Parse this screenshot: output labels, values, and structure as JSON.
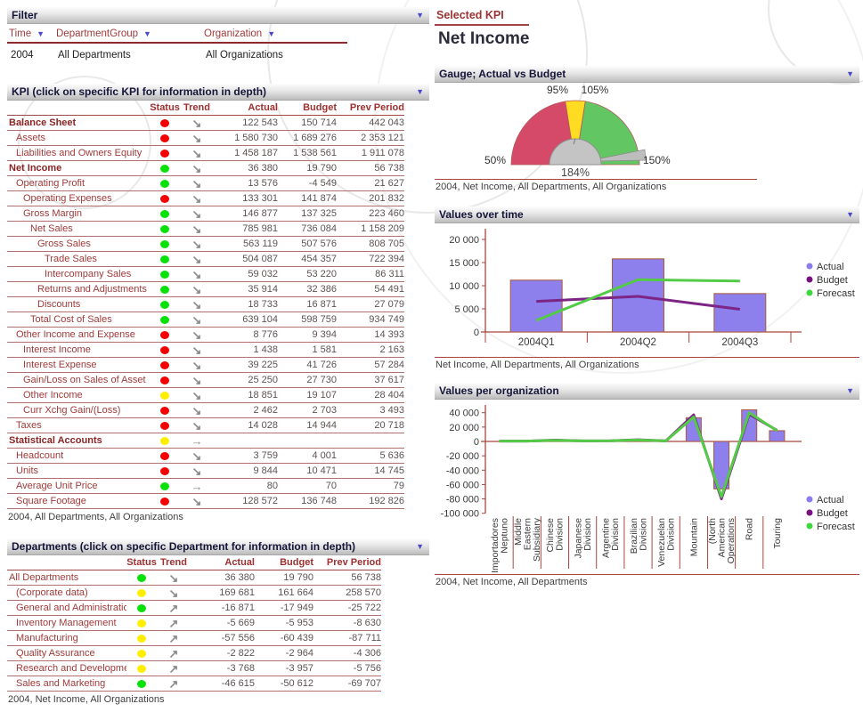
{
  "filter": {
    "title": "Filter",
    "columns": [
      {
        "label": "Time",
        "value": "2004"
      },
      {
        "label": "DepartmentGroup",
        "value": "All Departments"
      },
      {
        "label": "Organization",
        "value": "All Organizations"
      }
    ]
  },
  "selected_kpi": {
    "label": "Selected KPI",
    "value": "Net Income"
  },
  "kpi_panel": {
    "title": "KPI (click on specific KPI for information in depth)",
    "headers": [
      "Status",
      "Trend",
      "Actual",
      "Budget",
      "Prev Period"
    ],
    "caption": "2004, All Departments, All Organizations",
    "rows": [
      {
        "label": "Balance Sheet",
        "indent": 0,
        "bold": true,
        "status": "red",
        "trend": "down",
        "actual": "122 543",
        "budget": "150 714",
        "prev": "442 043"
      },
      {
        "label": "Assets",
        "indent": 1,
        "bold": false,
        "status": "red",
        "trend": "down",
        "actual": "1 580 730",
        "budget": "1 689 276",
        "prev": "2 353 121"
      },
      {
        "label": "Liabilities and Owners Equity",
        "indent": 1,
        "bold": false,
        "status": "red",
        "trend": "down",
        "actual": "1 458 187",
        "budget": "1 538 561",
        "prev": "1 911 078"
      },
      {
        "label": "Net Income",
        "indent": 0,
        "bold": true,
        "status": "green",
        "trend": "down",
        "actual": "36 380",
        "budget": "19 790",
        "prev": "56 738"
      },
      {
        "label": "Operating Profit",
        "indent": 1,
        "bold": false,
        "status": "green",
        "trend": "down",
        "actual": "13 576",
        "budget": "-4 549",
        "prev": "21 627"
      },
      {
        "label": "Operating Expenses",
        "indent": 2,
        "bold": false,
        "status": "red",
        "trend": "down",
        "actual": "133 301",
        "budget": "141 874",
        "prev": "201 832"
      },
      {
        "label": "Gross Margin",
        "indent": 2,
        "bold": false,
        "status": "green",
        "trend": "down",
        "actual": "146 877",
        "budget": "137 325",
        "prev": "223 460"
      },
      {
        "label": "Net Sales",
        "indent": 3,
        "bold": false,
        "status": "green",
        "trend": "down",
        "actual": "785 981",
        "budget": "736 084",
        "prev": "1 158 209"
      },
      {
        "label": "Gross Sales",
        "indent": 4,
        "bold": false,
        "status": "green",
        "trend": "down",
        "actual": "563 119",
        "budget": "507 576",
        "prev": "808 705"
      },
      {
        "label": "Trade Sales",
        "indent": 5,
        "bold": false,
        "status": "green",
        "trend": "down",
        "actual": "504 087",
        "budget": "454 357",
        "prev": "722 394"
      },
      {
        "label": "Intercompany Sales",
        "indent": 5,
        "bold": false,
        "status": "green",
        "trend": "down",
        "actual": "59 032",
        "budget": "53 220",
        "prev": "86 311"
      },
      {
        "label": "Returns and Adjustments",
        "indent": 4,
        "bold": false,
        "status": "green",
        "trend": "down",
        "actual": "35 914",
        "budget": "32 386",
        "prev": "54 491"
      },
      {
        "label": "Discounts",
        "indent": 4,
        "bold": false,
        "status": "green",
        "trend": "down",
        "actual": "18 733",
        "budget": "16 871",
        "prev": "27 079"
      },
      {
        "label": "Total Cost of Sales",
        "indent": 3,
        "bold": false,
        "status": "green",
        "trend": "down",
        "actual": "639 104",
        "budget": "598 759",
        "prev": "934 749"
      },
      {
        "label": "Other Income and Expense",
        "indent": 1,
        "bold": false,
        "status": "red",
        "trend": "down",
        "actual": "8 776",
        "budget": "9 394",
        "prev": "14 393"
      },
      {
        "label": "Interest Income",
        "indent": 2,
        "bold": false,
        "status": "red",
        "trend": "down",
        "actual": "1 438",
        "budget": "1 581",
        "prev": "2 163"
      },
      {
        "label": "Interest Expense",
        "indent": 2,
        "bold": false,
        "status": "red",
        "trend": "down",
        "actual": "39 225",
        "budget": "41 726",
        "prev": "57 284"
      },
      {
        "label": "Gain/Loss on Sales of Asset",
        "indent": 2,
        "bold": false,
        "status": "red",
        "trend": "down",
        "actual": "25 250",
        "budget": "27 730",
        "prev": "37 617"
      },
      {
        "label": "Other Income",
        "indent": 2,
        "bold": false,
        "status": "yellow",
        "trend": "down",
        "actual": "18 851",
        "budget": "19 107",
        "prev": "28 404"
      },
      {
        "label": "Curr Xchg Gain/(Loss)",
        "indent": 2,
        "bold": false,
        "status": "red",
        "trend": "down",
        "actual": "2 462",
        "budget": "2 703",
        "prev": "3 493"
      },
      {
        "label": "Taxes",
        "indent": 1,
        "bold": false,
        "status": "red",
        "trend": "down",
        "actual": "14 028",
        "budget": "14 944",
        "prev": "20 718"
      },
      {
        "label": "Statistical Accounts",
        "indent": 0,
        "bold": true,
        "status": "yellow",
        "trend": "right",
        "actual": "",
        "budget": "",
        "prev": ""
      },
      {
        "label": "Headcount",
        "indent": 1,
        "bold": false,
        "status": "red",
        "trend": "down",
        "actual": "3 759",
        "budget": "4 001",
        "prev": "5 636"
      },
      {
        "label": "Units",
        "indent": 1,
        "bold": false,
        "status": "red",
        "trend": "down",
        "actual": "9 844",
        "budget": "10 471",
        "prev": "14 745"
      },
      {
        "label": "Average Unit Price",
        "indent": 1,
        "bold": false,
        "status": "green",
        "trend": "right",
        "actual": "80",
        "budget": "70",
        "prev": "79"
      },
      {
        "label": "Square Footage",
        "indent": 1,
        "bold": false,
        "status": "red",
        "trend": "down",
        "actual": "128 572",
        "budget": "136 748",
        "prev": "192 826"
      }
    ]
  },
  "departments_panel": {
    "title": "Departments (click on specific Department for information in depth)",
    "headers": [
      "Status",
      "Trend",
      "Actual",
      "Budget",
      "Prev Period"
    ],
    "caption": "2004, Net Income, All Organizations",
    "rows": [
      {
        "label": "All Departments",
        "indent": 0,
        "bold": false,
        "status": "green",
        "trend": "down",
        "actual": "36 380",
        "budget": "19 790",
        "prev": "56 738"
      },
      {
        "label": "(Corporate data)",
        "indent": 1,
        "bold": false,
        "status": "yellow",
        "trend": "down",
        "actual": "169 681",
        "budget": "161 664",
        "prev": "258 570"
      },
      {
        "label": "General and Administration",
        "indent": 1,
        "bold": false,
        "status": "green",
        "trend": "up",
        "actual": "-16 871",
        "budget": "-17 949",
        "prev": "-25 722"
      },
      {
        "label": "Inventory Management",
        "indent": 1,
        "bold": false,
        "status": "yellow",
        "trend": "up",
        "actual": "-5 669",
        "budget": "-5 953",
        "prev": "-8 630"
      },
      {
        "label": "Manufacturing",
        "indent": 1,
        "bold": false,
        "status": "yellow",
        "trend": "up",
        "actual": "-57 556",
        "budget": "-60 439",
        "prev": "-87 711"
      },
      {
        "label": "Quality Assurance",
        "indent": 1,
        "bold": false,
        "status": "yellow",
        "trend": "up",
        "actual": "-2 822",
        "budget": "-2 964",
        "prev": "-4 306"
      },
      {
        "label": "Research and Development",
        "indent": 1,
        "bold": false,
        "status": "yellow",
        "trend": "up",
        "actual": "-3 768",
        "budget": "-3 957",
        "prev": "-5 756"
      },
      {
        "label": "Sales and Marketing",
        "indent": 1,
        "bold": false,
        "status": "green",
        "trend": "up",
        "actual": "-46 615",
        "budget": "-50 612",
        "prev": "-69 707"
      }
    ]
  },
  "chart_data": [
    {
      "type": "gauge",
      "title": "Gauge; Actual vs Budget",
      "min": 50,
      "max": 150,
      "value": 184,
      "value_label": "184%",
      "tick_labels": {
        "min": "50%",
        "low": "95%",
        "high": "105%",
        "max": "150%"
      },
      "segments": [
        {
          "from": 50,
          "to": 95,
          "color": "#d44a68"
        },
        {
          "from": 95,
          "to": 105,
          "color": "#ffdb21"
        },
        {
          "from": 105,
          "to": 150,
          "color": "#62c763"
        }
      ],
      "caption": "2004, Net Income, All Departments, All Organizations"
    },
    {
      "type": "bar",
      "title": "Values over time",
      "categories": [
        "2004Q1",
        "2004Q2",
        "2004Q3"
      ],
      "series": [
        {
          "name": "Actual",
          "kind": "bar",
          "color": "#8d7fec",
          "values": [
            11200,
            15800,
            8300
          ]
        },
        {
          "name": "Budget",
          "kind": "line",
          "color": "#7d2585",
          "values": [
            6600,
            7700,
            4900
          ]
        },
        {
          "name": "Forecast",
          "kind": "line",
          "color": "#53cb47",
          "values": [
            2500,
            11300,
            11000
          ]
        }
      ],
      "ylim": [
        0,
        22500
      ],
      "ytick_values": [
        0,
        5000,
        10000,
        15000,
        20000
      ],
      "ytick_labels": [
        "0",
        "5 000",
        "10 000",
        "15 000",
        "20 000"
      ],
      "legend": [
        "Actual",
        "Budget",
        "Forecast"
      ],
      "legend_colors": [
        "#8b7cf0",
        "#7a1080",
        "#3ed83e"
      ],
      "caption": "Net Income, All Departments, All Organizations"
    },
    {
      "type": "bar",
      "title": "Values per organization",
      "categories": [
        "Importadores Neptuno",
        "Middle Eastern Subsidiary",
        "Chinese Division",
        "Japanese Division",
        "Argentine Division",
        "Brazilian Division",
        "Venezuelan Division",
        "Mountain",
        "(North American Operations",
        "Road",
        "Touring"
      ],
      "category_label_lines": [
        [
          "Importadores",
          "Neptuno"
        ],
        [
          "Middle",
          "Eastern",
          "Subsidiary"
        ],
        [
          "Chinese",
          "Division"
        ],
        [
          "Japanese",
          "Division"
        ],
        [
          "Argentine",
          "Division"
        ],
        [
          "Brazilian",
          "Division"
        ],
        [
          "Venezuelan",
          "Division"
        ],
        [
          "Mountain"
        ],
        [
          "(North",
          "American",
          "Operations"
        ],
        [
          "Road"
        ],
        [
          "Touring"
        ]
      ],
      "series": [
        {
          "name": "Actual",
          "kind": "bar",
          "color": "#8d7fec",
          "values": [
            400,
            400,
            1600,
            700,
            900,
            2100,
            700,
            33000,
            -66000,
            44000,
            15000
          ]
        },
        {
          "name": "Budget",
          "kind": "line",
          "color": "#7d2585",
          "values": [
            500,
            500,
            1800,
            800,
            1000,
            2300,
            800,
            37000,
            -80000,
            38000,
            15500
          ]
        },
        {
          "name": "Forecast",
          "kind": "line",
          "color": "#53cb47",
          "values": [
            400,
            450,
            1500,
            700,
            900,
            2000,
            750,
            34000,
            -77000,
            40000,
            15000
          ]
        }
      ],
      "ylim": [
        -100000,
        51000
      ],
      "ytick_values": [
        40000,
        20000,
        0,
        -20000,
        -40000,
        -60000,
        -80000,
        -100000
      ],
      "ytick_labels": [
        "40 000",
        "20 000",
        "0",
        "-20 000",
        "-40 000",
        "-60 000",
        "-80 000",
        "-100 000"
      ],
      "legend": [
        "Actual",
        "Budget",
        "Forecast"
      ],
      "legend_colors": [
        "#8b7cf0",
        "#7a1080",
        "#3ed83e"
      ],
      "caption": "2004, Net Income, All Departments"
    }
  ]
}
